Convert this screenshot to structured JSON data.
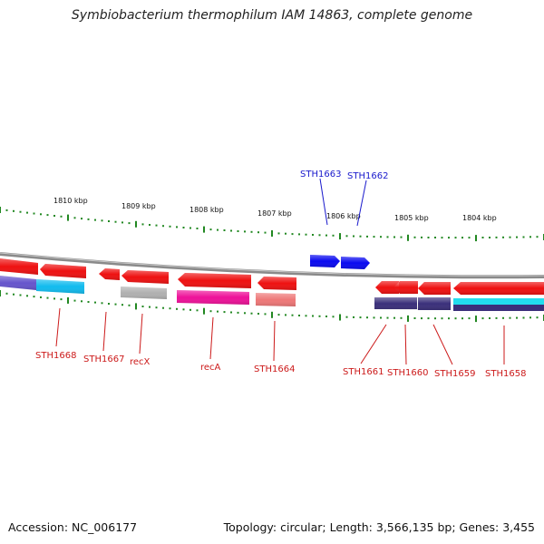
{
  "title": "Symbiobacterium thermophilum IAM 14863, complete genome",
  "footer": {
    "accession": "Accession: NC_006177",
    "summary": "Topology: circular; Length: 3,566,135 bp; Genes: 3,455"
  },
  "colors": {
    "backbone": "#8a8a8a",
    "tick": "#228822",
    "forward_label": "#1a1acc",
    "reverse_label": "#cc1a1a"
  },
  "kbp_labels": [
    "1810 kbp",
    "1809 kbp",
    "1808 kbp",
    "1807 kbp",
    "1806 kbp",
    "1805 kbp",
    "1804 kbp"
  ],
  "forward_genes": [
    {
      "name": "STH1663"
    },
    {
      "name": "STH1662"
    }
  ],
  "reverse_genes": [
    {
      "name": "STH1668"
    },
    {
      "name": "STH1667"
    },
    {
      "name": "recX"
    },
    {
      "name": "recA"
    },
    {
      "name": "STH1664"
    },
    {
      "name": "STH1661"
    },
    {
      "name": "STH1660"
    },
    {
      "name": "STH1659"
    },
    {
      "name": "STH1658"
    }
  ]
}
